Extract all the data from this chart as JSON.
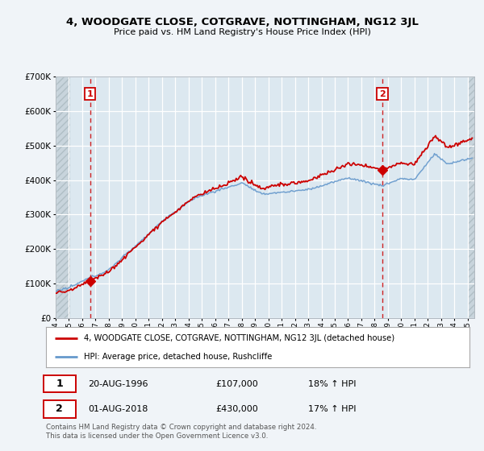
{
  "title": "4, WOODGATE CLOSE, COTGRAVE, NOTTINGHAM, NG12 3JL",
  "subtitle": "Price paid vs. HM Land Registry's House Price Index (HPI)",
  "sale1_price": 107000,
  "sale1_label": "20-AUG-1996",
  "sale1_hpi_text": "18% ↑ HPI",
  "sale2_price": 430000,
  "sale2_label": "01-AUG-2018",
  "sale2_hpi_text": "17% ↑ HPI",
  "legend_line1": "4, WOODGATE CLOSE, COTGRAVE, NOTTINGHAM, NG12 3JL (detached house)",
  "legend_line2": "HPI: Average price, detached house, Rushcliffe",
  "footer": "Contains HM Land Registry data © Crown copyright and database right 2024.\nThis data is licensed under the Open Government Licence v3.0.",
  "sale1_x": 1996.583,
  "sale2_x": 2018.583,
  "xmin": 1994.0,
  "xmax": 2025.5,
  "ymin": 0,
  "ymax": 700000,
  "bg_color": "#dce8f0",
  "plot_bg": "#dce8f0",
  "fig_bg": "#f0f4f8",
  "red_color": "#cc0000",
  "blue_color": "#6699cc",
  "white_grid": "#ffffff"
}
